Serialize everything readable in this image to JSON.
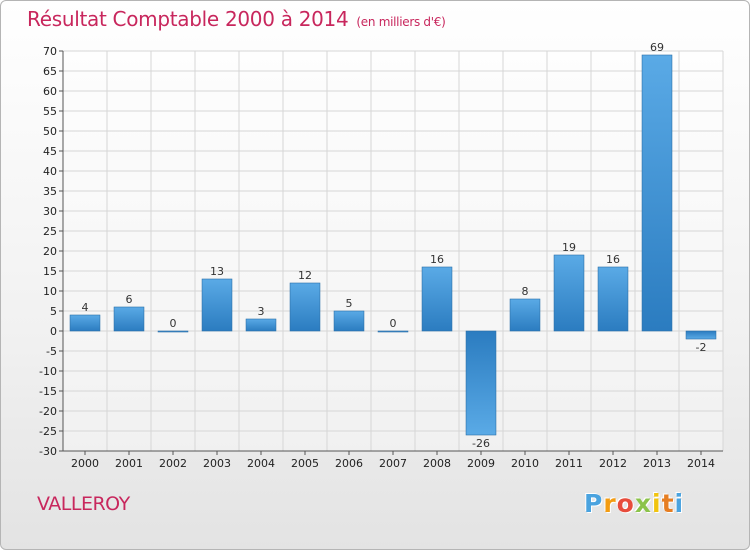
{
  "chart_data": {
    "type": "bar",
    "title": "Résultat Comptable 2000 à 2014",
    "subtitle": "(en milliers d'€)",
    "categories": [
      "2000",
      "2001",
      "2002",
      "2003",
      "2004",
      "2005",
      "2006",
      "2007",
      "2008",
      "2009",
      "2010",
      "2011",
      "2012",
      "2013",
      "2014"
    ],
    "values": [
      4,
      6,
      0,
      13,
      3,
      12,
      5,
      0,
      16,
      -26,
      8,
      19,
      16,
      69,
      -2
    ],
    "ylim": [
      -30,
      70
    ],
    "yticks": [
      70,
      65,
      60,
      55,
      50,
      45,
      40,
      35,
      30,
      25,
      20,
      15,
      10,
      5,
      0,
      -5,
      -10,
      -15,
      -20,
      -25,
      -30
    ],
    "xlabel": "",
    "ylabel": "",
    "grid": true
  },
  "commune": "VALLEROY",
  "logo": {
    "letters": [
      "P",
      "r",
      "o",
      "x",
      "i",
      "t",
      "i"
    ],
    "colors": [
      "#4aa3df",
      "#f39c12",
      "#e74c3c",
      "#8bc34a",
      "#f1c40f",
      "#e67e22",
      "#4aa3df"
    ]
  },
  "colors": {
    "title": "#c8275d",
    "bar_light": "#5aaae6",
    "bar_dark": "#2b7cc0",
    "grid": "#d6d6d6"
  }
}
